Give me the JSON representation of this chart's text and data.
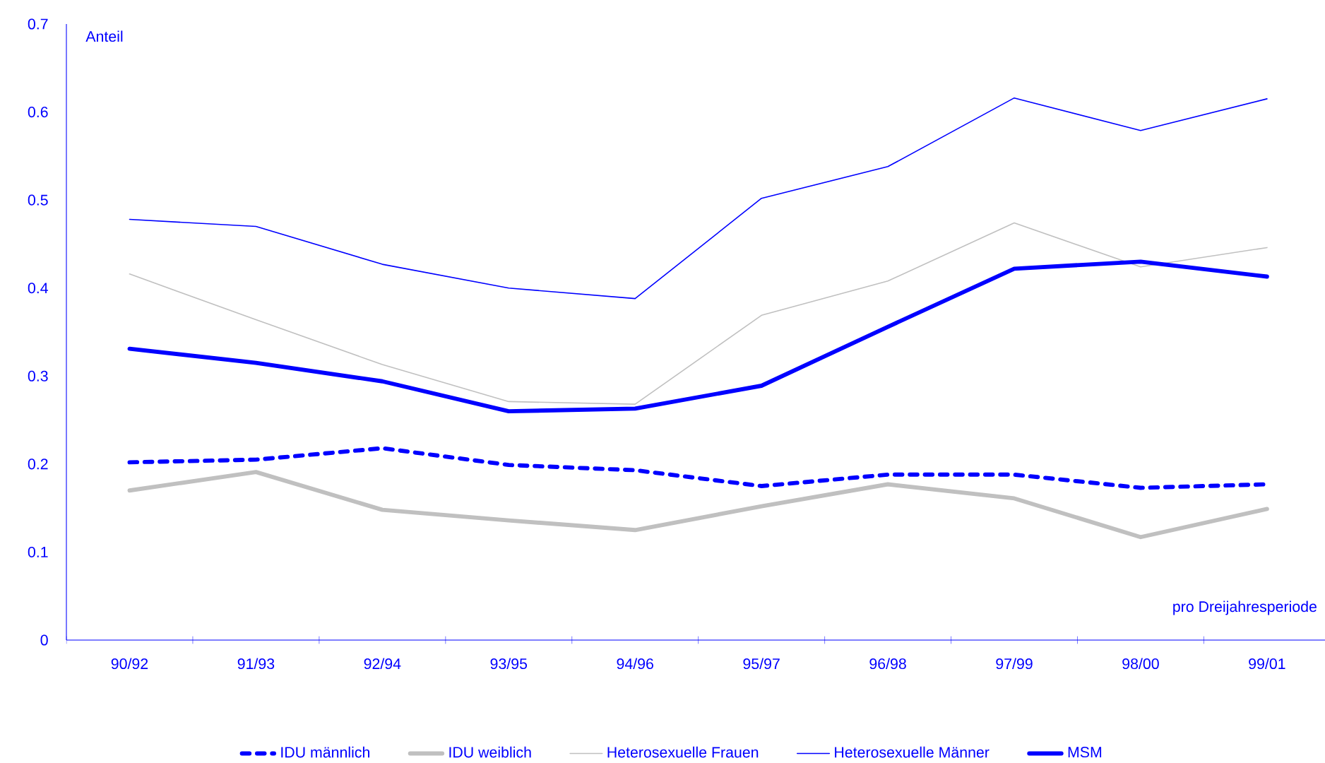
{
  "chart_data": {
    "type": "line",
    "xlabel": "pro Dreijahresperiode",
    "ylabel": "Anteil",
    "categories": [
      "90/92",
      "91/93",
      "92/94",
      "93/95",
      "94/96",
      "95/97",
      "96/98",
      "97/99",
      "98/00",
      "99/01"
    ],
    "ylim": [
      0,
      0.7
    ],
    "yticks": [
      0,
      0.1,
      0.2,
      0.3,
      0.4,
      0.5,
      0.6,
      0.7
    ],
    "grid": false,
    "legend": "bottom",
    "series": [
      {
        "name": "IDU männlich",
        "color": "#0000ff",
        "line_style": "dashed",
        "values": [
          0.202,
          0.205,
          0.218,
          0.199,
          0.193,
          0.175,
          0.188,
          0.188,
          0.173,
          0.177
        ]
      },
      {
        "name": "IDU weiblich",
        "color": "#c0c0c0",
        "line_style": "solid",
        "values": [
          0.17,
          0.191,
          0.148,
          0.136,
          0.125,
          0.152,
          0.177,
          0.161,
          0.117,
          0.149
        ]
      },
      {
        "name": "Heterosexuelle Frauen",
        "color": "#c0c0c0",
        "line_style": "solid",
        "values": [
          0.416,
          0.364,
          0.313,
          0.271,
          0.268,
          0.369,
          0.408,
          0.474,
          0.424,
          0.446
        ]
      },
      {
        "name": "Heterosexuelle Männer",
        "color": "#0000ff",
        "line_style": "solid",
        "values": [
          0.478,
          0.47,
          0.427,
          0.4,
          0.388,
          0.502,
          0.538,
          0.616,
          0.579,
          0.615
        ]
      },
      {
        "name": "MSM",
        "color": "#0000ff",
        "line_style": "solid",
        "values": [
          0.331,
          0.315,
          0.294,
          0.26,
          0.263,
          0.289,
          0.356,
          0.422,
          0.43,
          0.413
        ]
      }
    ]
  }
}
